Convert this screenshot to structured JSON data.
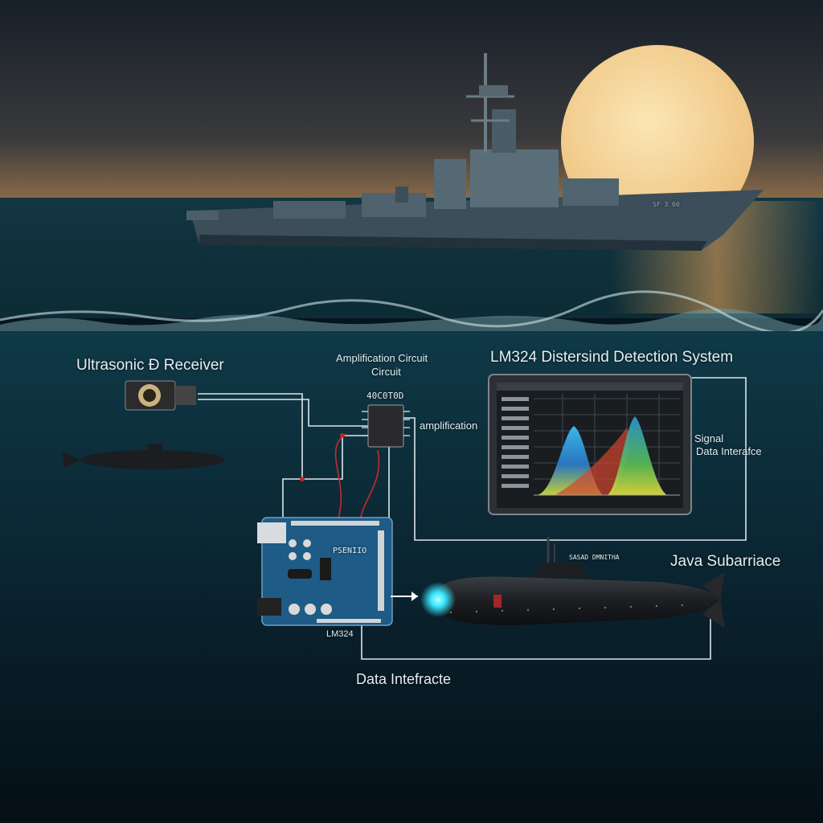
{
  "labels": {
    "receiver": "Ultrasonic Đ Receiver",
    "amplification_title_1": "Amplification Circuit",
    "amplification_title_2": "Circuit",
    "chip_code": "40C0T0D",
    "amplification_side": "amplification",
    "detection_system": "LM324 Distersind Detection System",
    "signal_interface_1": "Signal",
    "signal_interface_2": "Data Interafce",
    "submarine_name": "Java Subarriace",
    "submarine_tag": "SASAD DMNITHA",
    "board_label": "LM324",
    "board_brand": "PSENIIO",
    "data_interface": "Data Intefracte",
    "ship_hull_code": "SF 3 60"
  },
  "colors": {
    "sky_top": "#16202a",
    "sky_horizon": "#8a6a48",
    "moon": "#f4d79a",
    "sea": "#0c2f3a",
    "deep": "#06141d",
    "wire": "#dde6ea",
    "wire_red": "#c22a2a",
    "board": "#1e5b86",
    "sonar_glow": "#37e7ff"
  }
}
